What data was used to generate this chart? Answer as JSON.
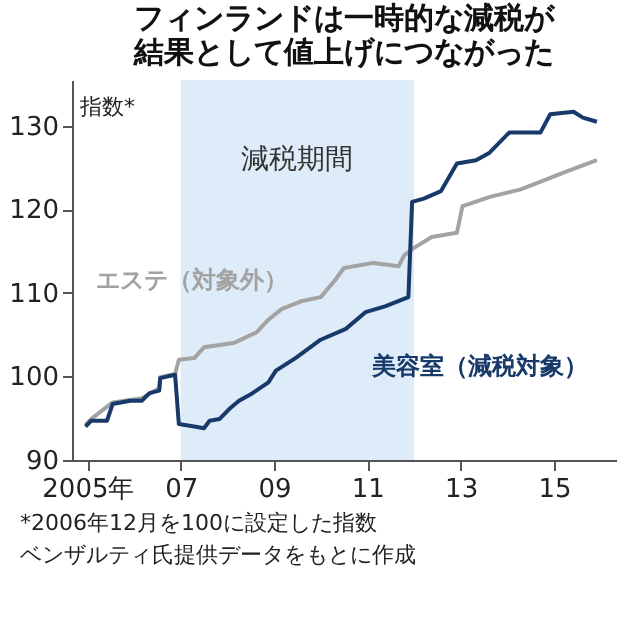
{
  "chart_data": {
    "type": "line",
    "title": [
      "フィンランドは一時的な減税が",
      "結果として値上げにつながった"
    ],
    "ylabel": "指数*",
    "annotations": [
      "*2006年12月を100に設定した指数",
      "ベンザルティ氏提供データをもとに作成"
    ],
    "xlim": [
      2004.67,
      2016.33
    ],
    "xticks": [
      {
        "value": 2005,
        "label": "2005年"
      },
      {
        "value": 2007,
        "label": "07"
      },
      {
        "value": 2009,
        "label": "09"
      },
      {
        "value": 2011,
        "label": "11"
      },
      {
        "value": 2013,
        "label": "13"
      },
      {
        "value": 2015,
        "label": "15"
      }
    ],
    "ylim": [
      90,
      135.5
    ],
    "yticks": [
      90,
      100,
      110,
      120,
      130
    ],
    "grid": false,
    "legend": false,
    "bands": [
      {
        "axis": "x",
        "from": 2007.0,
        "to": 2012.0,
        "label": "減税期間",
        "color": "#deebf8"
      }
    ],
    "series": [
      {
        "name": "エステ（対象外）",
        "color": "#a3a3a3",
        "x": [
          2004.96,
          2005.08,
          2005.54,
          2006.17,
          2006.54,
          2006.56,
          2006.88,
          2006.96,
          2007.29,
          2007.5,
          2008.13,
          2008.63,
          2008.88,
          2009.17,
          2009.58,
          2010.0,
          2010.29,
          2010.5,
          2011.13,
          2011.67,
          2011.79,
          2012.0,
          2012.38,
          2012.92,
          2013.04,
          2013.63,
          2014.29,
          2014.88,
          2015.29,
          2015.92
        ],
        "values": [
          94.2,
          94.9,
          96.9,
          97.4,
          98.6,
          99.9,
          100.3,
          102.0,
          102.2,
          103.5,
          104.0,
          105.3,
          106.8,
          108.1,
          109.0,
          109.5,
          111.4,
          113.0,
          113.6,
          113.2,
          114.5,
          115.4,
          116.7,
          117.2,
          120.4,
          121.5,
          122.4,
          123.7,
          124.6,
          125.9
        ]
      },
      {
        "name": "美容室（減税対象）",
        "color": "#173a6b",
        "x": [
          2004.96,
          2005.08,
          2005.42,
          2005.54,
          2005.92,
          2006.17,
          2006.33,
          2006.54,
          2006.56,
          2006.88,
          2006.96,
          2007.29,
          2007.5,
          2007.62,
          2007.83,
          2008.04,
          2008.25,
          2008.54,
          2008.88,
          2009.04,
          2009.46,
          2010.0,
          2010.54,
          2010.96,
          2011.38,
          2011.88,
          2011.96,
          2012.21,
          2012.58,
          2012.92,
          2013.33,
          2013.62,
          2014.04,
          2014.71,
          2014.92,
          2015.42,
          2015.62,
          2015.92
        ],
        "values": [
          94.0,
          94.7,
          94.7,
          96.7,
          97.1,
          97.1,
          98.0,
          98.3,
          99.8,
          100.2,
          94.3,
          94.0,
          93.8,
          94.7,
          94.9,
          96.1,
          97.1,
          98.0,
          99.3,
          100.7,
          102.2,
          104.4,
          105.7,
          107.7,
          108.4,
          109.5,
          120.9,
          121.3,
          122.2,
          125.5,
          125.9,
          126.8,
          129.2,
          129.2,
          131.4,
          131.7,
          131.0,
          130.5
        ]
      }
    ]
  }
}
